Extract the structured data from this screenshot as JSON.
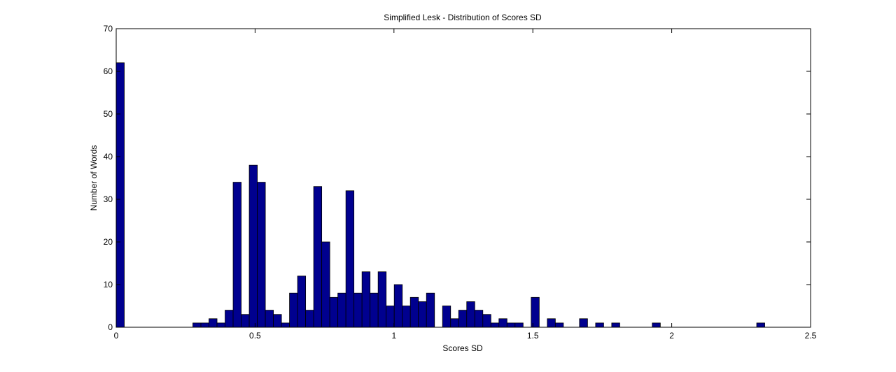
{
  "chart_data": {
    "type": "bar",
    "title": "Simplified Lesk - Distribution of Scores SD",
    "xlabel": "Scores SD",
    "ylabel": "Number of Words",
    "xlim": [
      0,
      2.5
    ],
    "ylim": [
      0,
      70
    ],
    "xticks": [
      "0",
      "0.5",
      "1",
      "1.5",
      "2",
      "2.5"
    ],
    "yticks": [
      "0",
      "10",
      "20",
      "30",
      "40",
      "50",
      "60",
      "70"
    ],
    "grid": false,
    "bin_width": 0.029,
    "bar_color": "#00008f",
    "edge_color": "#000000",
    "x": [
      0.0,
      0.276,
      0.305,
      0.334,
      0.363,
      0.392,
      0.421,
      0.45,
      0.479,
      0.508,
      0.537,
      0.566,
      0.595,
      0.624,
      0.653,
      0.682,
      0.711,
      0.74,
      0.769,
      0.798,
      0.827,
      0.856,
      0.885,
      0.914,
      0.943,
      0.972,
      1.001,
      1.03,
      1.059,
      1.088,
      1.117,
      1.175,
      1.204,
      1.233,
      1.262,
      1.291,
      1.32,
      1.349,
      1.378,
      1.407,
      1.436,
      1.494,
      1.552,
      1.581,
      1.668,
      1.726,
      1.784,
      1.93,
      2.306
    ],
    "values": [
      62,
      1,
      1,
      2,
      1,
      4,
      34,
      3,
      38,
      34,
      4,
      3,
      1,
      8,
      12,
      4,
      33,
      20,
      7,
      8,
      32,
      8,
      13,
      8,
      13,
      5,
      10,
      5,
      7,
      6,
      8,
      5,
      2,
      4,
      6,
      4,
      3,
      1,
      2,
      1,
      1,
      7,
      2,
      1,
      2,
      1,
      1,
      1,
      1
    ]
  },
  "colors": {
    "bar": "#00008f",
    "edge": "#000000",
    "axes": "#000000",
    "background": "#ffffff"
  }
}
